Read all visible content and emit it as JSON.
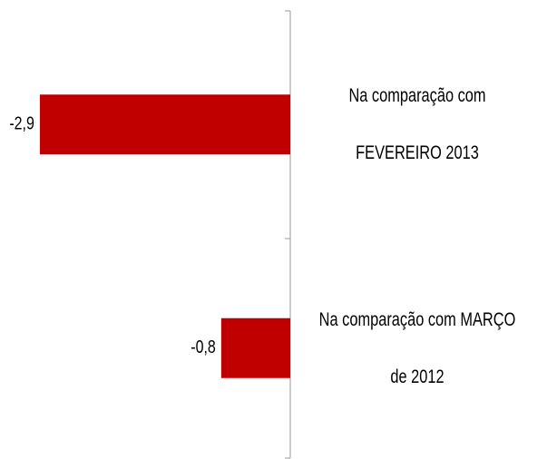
{
  "chart_data": {
    "type": "bar",
    "orientation": "horizontal",
    "categories": [
      "Na comparação com FEVEREIRO 2013",
      "Na comparação com MARÇO de 2012"
    ],
    "values": [
      -2.9,
      -0.8
    ],
    "value_labels": [
      "-2,9",
      "-0,8"
    ],
    "color": "#c00000"
  }
}
